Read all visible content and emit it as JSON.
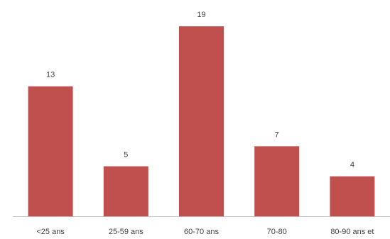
{
  "chart_data": {
    "type": "bar",
    "categories": [
      "<25 ans",
      "25-59 ans",
      "60-70 ans",
      "70-80",
      "80-90 ans et"
    ],
    "values": [
      13,
      5,
      19,
      7,
      4
    ],
    "title": "",
    "xlabel": "",
    "ylabel": "",
    "ylim": [
      0,
      20
    ],
    "grid": false,
    "legend": "none",
    "data_labels": true,
    "colors": {
      "bar": "#c0504d",
      "axis": "#bfbfbf",
      "text": "#404040"
    }
  }
}
